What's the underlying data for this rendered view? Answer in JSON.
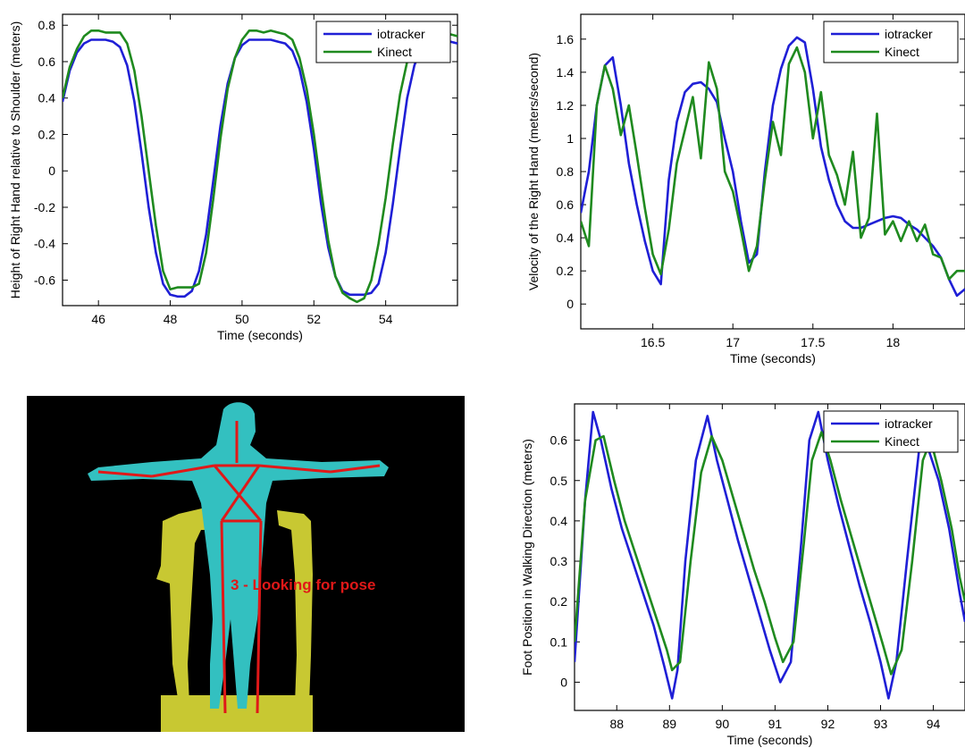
{
  "colors": {
    "iotracker": "#1f1fd6",
    "kinect": "#1f8a1f",
    "kinect_background": "#000000",
    "body_cyan": "#33c0c0",
    "body_yellow": "#c8c832",
    "skeleton_red": "#e01818"
  },
  "chart_data": [
    {
      "type": "line",
      "xlabel": "Time (seconds)",
      "ylabel": "Height of Right Hand relative to Shoulder (meters)",
      "xlim": [
        45,
        56
      ],
      "ylim": [
        -0.74,
        0.86
      ],
      "xticks": [
        46,
        48,
        50,
        52,
        54
      ],
      "xtick_labels": [
        "46",
        "48",
        "50",
        "52",
        "54"
      ],
      "yticks": [
        -0.6,
        -0.4,
        -0.2,
        0,
        0.2,
        0.4,
        0.6,
        0.8
      ],
      "ytick_labels": [
        "-0.6",
        "-0.4",
        "-0.2",
        "0",
        "0.2",
        "0.4",
        "0.6",
        "0.8"
      ],
      "legend": {
        "position": "top-right"
      },
      "grid": false,
      "series": [
        {
          "name": "iotracker",
          "color_key": "iotracker",
          "x": [
            45.0,
            45.2,
            45.4,
            45.6,
            45.8,
            46.0,
            46.2,
            46.4,
            46.6,
            46.8,
            47.0,
            47.2,
            47.4,
            47.6,
            47.8,
            48.0,
            48.2,
            48.4,
            48.6,
            48.8,
            49.0,
            49.2,
            49.4,
            49.6,
            49.8,
            50.0,
            50.2,
            50.4,
            50.6,
            50.8,
            51.0,
            51.2,
            51.4,
            51.6,
            51.8,
            52.0,
            52.2,
            52.4,
            52.6,
            52.8,
            53.0,
            53.2,
            53.4,
            53.6,
            53.8,
            54.0,
            54.2,
            54.4,
            54.6,
            54.8,
            55.0,
            55.2,
            55.4,
            55.6,
            55.8,
            56.0
          ],
          "y": [
            0.38,
            0.55,
            0.65,
            0.7,
            0.72,
            0.72,
            0.72,
            0.71,
            0.68,
            0.58,
            0.38,
            0.1,
            -0.2,
            -0.45,
            -0.62,
            -0.68,
            -0.69,
            -0.69,
            -0.66,
            -0.55,
            -0.35,
            -0.05,
            0.25,
            0.48,
            0.62,
            0.69,
            0.72,
            0.72,
            0.72,
            0.72,
            0.71,
            0.7,
            0.66,
            0.56,
            0.38,
            0.12,
            -0.18,
            -0.42,
            -0.58,
            -0.66,
            -0.68,
            -0.68,
            -0.68,
            -0.67,
            -0.62,
            -0.45,
            -0.18,
            0.12,
            0.4,
            0.58,
            0.68,
            0.71,
            0.72,
            0.72,
            0.71,
            0.7
          ]
        },
        {
          "name": "Kinect",
          "color_key": "kinect",
          "x": [
            45.0,
            45.2,
            45.4,
            45.6,
            45.8,
            46.0,
            46.2,
            46.4,
            46.6,
            46.8,
            47.0,
            47.2,
            47.4,
            47.6,
            47.8,
            48.0,
            48.2,
            48.4,
            48.6,
            48.8,
            49.0,
            49.2,
            49.4,
            49.6,
            49.8,
            50.0,
            50.2,
            50.4,
            50.6,
            50.8,
            51.0,
            51.2,
            51.4,
            51.6,
            51.8,
            52.0,
            52.2,
            52.4,
            52.6,
            52.8,
            53.0,
            53.2,
            53.4,
            53.6,
            53.8,
            54.0,
            54.2,
            54.4,
            54.6,
            54.8,
            55.0,
            55.2,
            55.4,
            55.6,
            55.8,
            56.0
          ],
          "y": [
            0.4,
            0.57,
            0.67,
            0.74,
            0.77,
            0.77,
            0.76,
            0.76,
            0.76,
            0.7,
            0.55,
            0.3,
            0.0,
            -0.3,
            -0.55,
            -0.65,
            -0.64,
            -0.64,
            -0.64,
            -0.62,
            -0.45,
            -0.15,
            0.18,
            0.45,
            0.62,
            0.72,
            0.77,
            0.77,
            0.76,
            0.77,
            0.76,
            0.75,
            0.72,
            0.62,
            0.45,
            0.2,
            -0.1,
            -0.38,
            -0.58,
            -0.67,
            -0.7,
            -0.72,
            -0.7,
            -0.6,
            -0.4,
            -0.15,
            0.15,
            0.42,
            0.6,
            0.7,
            0.74,
            0.75,
            0.75,
            0.76,
            0.75,
            0.74
          ]
        }
      ]
    },
    {
      "type": "line",
      "xlabel": "Time (seconds)",
      "ylabel": "Velocity of the Right Hand (meters/second)",
      "xlim": [
        16.05,
        18.45
      ],
      "ylim": [
        -0.15,
        1.75
      ],
      "xticks": [
        16.5,
        17,
        17.5,
        18
      ],
      "xtick_labels": [
        "16.5",
        "17",
        "17.5",
        "18"
      ],
      "yticks": [
        0,
        0.2,
        0.4,
        0.6,
        0.8,
        1,
        1.2,
        1.4,
        1.6
      ],
      "ytick_labels": [
        "0",
        "0.2",
        "0.4",
        "0.6",
        "0.8",
        "1",
        "1.2",
        "1.4",
        "1.6"
      ],
      "legend": {
        "position": "top-right"
      },
      "grid": false,
      "series": [
        {
          "name": "iotracker",
          "color_key": "iotracker",
          "x": [
            16.05,
            16.1,
            16.15,
            16.2,
            16.25,
            16.3,
            16.35,
            16.4,
            16.45,
            16.5,
            16.55,
            16.6,
            16.65,
            16.7,
            16.75,
            16.8,
            16.85,
            16.9,
            16.95,
            17.0,
            17.05,
            17.1,
            17.15,
            17.2,
            17.25,
            17.3,
            17.35,
            17.4,
            17.45,
            17.5,
            17.55,
            17.6,
            17.65,
            17.7,
            17.75,
            17.8,
            17.85,
            17.9,
            17.95,
            18.0,
            18.05,
            18.1,
            18.15,
            18.2,
            18.25,
            18.3,
            18.35,
            18.4,
            18.45
          ],
          "y": [
            0.55,
            0.8,
            1.2,
            1.44,
            1.49,
            1.2,
            0.85,
            0.6,
            0.38,
            0.2,
            0.12,
            0.75,
            1.1,
            1.28,
            1.33,
            1.34,
            1.3,
            1.22,
            1.0,
            0.8,
            0.5,
            0.25,
            0.3,
            0.8,
            1.2,
            1.42,
            1.56,
            1.61,
            1.58,
            1.3,
            0.95,
            0.75,
            0.6,
            0.5,
            0.46,
            0.46,
            0.48,
            0.5,
            0.52,
            0.53,
            0.52,
            0.48,
            0.45,
            0.4,
            0.35,
            0.28,
            0.15,
            0.05,
            0.09
          ]
        },
        {
          "name": "Kinect",
          "color_key": "kinect",
          "x": [
            16.05,
            16.1,
            16.15,
            16.2,
            16.25,
            16.3,
            16.35,
            16.4,
            16.45,
            16.5,
            16.55,
            16.6,
            16.65,
            16.7,
            16.75,
            16.8,
            16.85,
            16.9,
            16.95,
            17.0,
            17.05,
            17.1,
            17.15,
            17.2,
            17.25,
            17.3,
            17.35,
            17.4,
            17.45,
            17.5,
            17.55,
            17.6,
            17.65,
            17.7,
            17.75,
            17.8,
            17.85,
            17.9,
            17.95,
            18.0,
            18.05,
            18.1,
            18.15,
            18.2,
            18.25,
            18.3,
            18.35,
            18.4,
            18.45
          ],
          "y": [
            0.5,
            0.35,
            1.2,
            1.44,
            1.3,
            1.02,
            1.2,
            0.9,
            0.58,
            0.3,
            0.18,
            0.45,
            0.85,
            1.05,
            1.25,
            0.88,
            1.46,
            1.3,
            0.8,
            0.68,
            0.45,
            0.2,
            0.35,
            0.75,
            1.1,
            0.9,
            1.45,
            1.55,
            1.4,
            1.0,
            1.28,
            0.9,
            0.78,
            0.6,
            0.92,
            0.4,
            0.52,
            1.15,
            0.42,
            0.5,
            0.38,
            0.5,
            0.38,
            0.48,
            0.3,
            0.28,
            0.15,
            0.2,
            0.2
          ]
        }
      ]
    },
    {
      "type": "line",
      "xlabel": "Time (seconds)",
      "ylabel": "Foot Position in Walking Direction (meters)",
      "xlim": [
        87.2,
        94.6
      ],
      "ylim": [
        -0.07,
        0.69
      ],
      "xticks": [
        88,
        89,
        90,
        91,
        92,
        93,
        94
      ],
      "xtick_labels": [
        "88",
        "89",
        "90",
        "91",
        "92",
        "93",
        "94"
      ],
      "yticks": [
        0,
        0.1,
        0.2,
        0.3,
        0.4,
        0.5,
        0.6
      ],
      "ytick_labels": [
        "0",
        "0.1",
        "0.2",
        "0.3",
        "0.4",
        "0.5",
        "0.6"
      ],
      "legend": {
        "position": "top-right"
      },
      "grid": false,
      "series": [
        {
          "name": "iotracker",
          "color_key": "iotracker",
          "x": [
            87.2,
            87.4,
            87.55,
            87.7,
            87.9,
            88.1,
            88.3,
            88.5,
            88.7,
            88.9,
            89.05,
            89.15,
            89.3,
            89.5,
            89.72,
            89.9,
            90.1,
            90.3,
            90.5,
            90.7,
            90.9,
            91.1,
            91.3,
            91.5,
            91.65,
            91.82,
            92.0,
            92.2,
            92.4,
            92.6,
            92.8,
            93.0,
            93.15,
            93.3,
            93.5,
            93.75,
            93.9,
            94.1,
            94.3,
            94.5,
            94.6
          ],
          "y": [
            0.05,
            0.45,
            0.67,
            0.6,
            0.48,
            0.38,
            0.3,
            0.22,
            0.14,
            0.04,
            -0.04,
            0.03,
            0.3,
            0.55,
            0.66,
            0.55,
            0.45,
            0.35,
            0.26,
            0.17,
            0.08,
            0.0,
            0.05,
            0.35,
            0.6,
            0.67,
            0.55,
            0.44,
            0.34,
            0.24,
            0.15,
            0.05,
            -0.04,
            0.05,
            0.3,
            0.6,
            0.58,
            0.5,
            0.38,
            0.22,
            0.15
          ]
        },
        {
          "name": "Kinect",
          "color_key": "kinect",
          "x": [
            87.2,
            87.4,
            87.6,
            87.75,
            87.95,
            88.15,
            88.35,
            88.55,
            88.75,
            88.95,
            89.05,
            89.2,
            89.4,
            89.6,
            89.8,
            90.0,
            90.2,
            90.4,
            90.6,
            90.8,
            91.0,
            91.15,
            91.35,
            91.55,
            91.7,
            91.88,
            92.05,
            92.25,
            92.45,
            92.65,
            92.85,
            93.05,
            93.2,
            93.4,
            93.6,
            93.8,
            93.95,
            94.15,
            94.35,
            94.5,
            94.6
          ],
          "y": [
            0.1,
            0.45,
            0.6,
            0.61,
            0.5,
            0.4,
            0.32,
            0.24,
            0.16,
            0.08,
            0.03,
            0.05,
            0.3,
            0.52,
            0.61,
            0.55,
            0.46,
            0.37,
            0.28,
            0.2,
            0.11,
            0.05,
            0.1,
            0.35,
            0.55,
            0.62,
            0.55,
            0.45,
            0.36,
            0.27,
            0.18,
            0.09,
            0.02,
            0.08,
            0.3,
            0.55,
            0.6,
            0.5,
            0.38,
            0.26,
            0.2
          ]
        }
      ]
    }
  ],
  "kinect_view": {
    "overlay_text": "3 - Looking for pose"
  }
}
